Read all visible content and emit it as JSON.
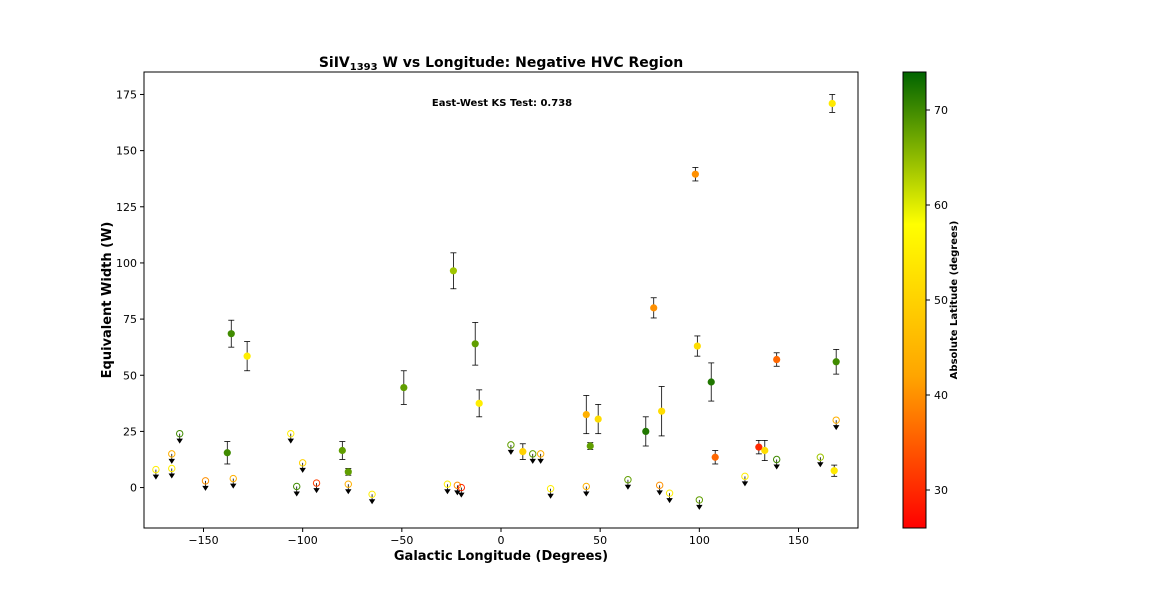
{
  "chart_data": {
    "type": "scatter",
    "title": {
      "main": "SiIV",
      "sub": "1393",
      "rest": " W vs Longitude: Negative HVC Region"
    },
    "xlabel": "Galactic Longitude (Degrees)",
    "ylabel": "Equivalent Width (W)",
    "annotation": "East-West KS Test: 0.738",
    "colorbar_label": "Absolute Latitude (degrees)",
    "xlim": [
      -180,
      180
    ],
    "ylim": [
      -18,
      185
    ],
    "xticks": [
      -150,
      -100,
      -50,
      0,
      50,
      100,
      150
    ],
    "yticks": [
      0,
      25,
      50,
      75,
      100,
      125,
      150,
      175
    ],
    "colorbar_range": [
      26,
      74
    ],
    "colorbar_ticks": [
      30,
      40,
      50,
      60,
      70
    ],
    "colormap": [
      "#ff0000",
      "#ffa500",
      "#ffff00",
      "#006400"
    ],
    "detections": [
      {
        "x": -138,
        "y": 15.5,
        "err": 5,
        "lat": 70
      },
      {
        "x": -136,
        "y": 68.5,
        "err": 6,
        "lat": 70
      },
      {
        "x": -128,
        "y": 58.5,
        "err": 6.5,
        "lat": 55
      },
      {
        "x": -80,
        "y": 16.5,
        "err": 4,
        "lat": 68
      },
      {
        "x": -77,
        "y": 7,
        "err": 1.5,
        "lat": 68
      },
      {
        "x": -49,
        "y": 44.5,
        "err": 7.5,
        "lat": 68
      },
      {
        "x": -24,
        "y": 96.5,
        "err": 8,
        "lat": 64
      },
      {
        "x": -13,
        "y": 64,
        "err": 9.5,
        "lat": 68
      },
      {
        "x": -11,
        "y": 37.5,
        "err": 6,
        "lat": 55
      },
      {
        "x": 11,
        "y": 16,
        "err": 3.5,
        "lat": 50
      },
      {
        "x": 43,
        "y": 32.5,
        "err": 8.5,
        "lat": 44
      },
      {
        "x": 45,
        "y": 18.5,
        "err": 1.5,
        "lat": 68
      },
      {
        "x": 49,
        "y": 30.5,
        "err": 6.5,
        "lat": 52
      },
      {
        "x": 73,
        "y": 25,
        "err": 6.5,
        "lat": 72
      },
      {
        "x": 77,
        "y": 80,
        "err": 4.5,
        "lat": 40
      },
      {
        "x": 81,
        "y": 34,
        "err": 11,
        "lat": 52
      },
      {
        "x": 98,
        "y": 139.5,
        "err": 3,
        "lat": 40
      },
      {
        "x": 99,
        "y": 63,
        "err": 4.5,
        "lat": 52
      },
      {
        "x": 106,
        "y": 47,
        "err": 8.5,
        "lat": 72
      },
      {
        "x": 108,
        "y": 13.5,
        "err": 3,
        "lat": 36
      },
      {
        "x": 130,
        "y": 18,
        "err": 3,
        "lat": 30
      },
      {
        "x": 133,
        "y": 16.5,
        "err": 4.5,
        "lat": 52
      },
      {
        "x": 139,
        "y": 57,
        "err": 3,
        "lat": 36
      },
      {
        "x": 167,
        "y": 171,
        "err": 4,
        "lat": 54
      },
      {
        "x": 168,
        "y": 7.5,
        "err": 2.5,
        "lat": 54
      },
      {
        "x": 169,
        "y": 56,
        "err": 5.5,
        "lat": 70
      }
    ],
    "upper_limits": [
      {
        "x": -174,
        "y": 8,
        "lat": 55
      },
      {
        "x": -166,
        "y": 15,
        "lat": 44
      },
      {
        "x": -166,
        "y": 8.5,
        "lat": 55
      },
      {
        "x": -162,
        "y": 24,
        "lat": 70
      },
      {
        "x": -149,
        "y": 3,
        "lat": 40
      },
      {
        "x": -135,
        "y": 4,
        "lat": 44
      },
      {
        "x": -106,
        "y": 24,
        "lat": 55
      },
      {
        "x": -103,
        "y": 0.5,
        "lat": 70
      },
      {
        "x": -100,
        "y": 11,
        "lat": 50
      },
      {
        "x": -93,
        "y": 2,
        "lat": 32
      },
      {
        "x": -77,
        "y": 1.5,
        "lat": 44
      },
      {
        "x": -65,
        "y": -3,
        "lat": 55
      },
      {
        "x": -27,
        "y": 1.5,
        "lat": 55
      },
      {
        "x": -22,
        "y": 1,
        "lat": 40
      },
      {
        "x": -20,
        "y": 0,
        "lat": 30
      },
      {
        "x": 5,
        "y": 19,
        "lat": 68
      },
      {
        "x": 16,
        "y": 15,
        "lat": 68
      },
      {
        "x": 20,
        "y": 15,
        "lat": 44
      },
      {
        "x": 25,
        "y": -0.5,
        "lat": 55
      },
      {
        "x": 43,
        "y": 0.5,
        "lat": 44
      },
      {
        "x": 64,
        "y": 3.5,
        "lat": 68
      },
      {
        "x": 80,
        "y": 1,
        "lat": 40
      },
      {
        "x": 85,
        "y": -2.5,
        "lat": 55
      },
      {
        "x": 100,
        "y": -5.5,
        "lat": 68
      },
      {
        "x": 123,
        "y": 5,
        "lat": 55
      },
      {
        "x": 139,
        "y": 12.5,
        "lat": 70
      },
      {
        "x": 161,
        "y": 13.5,
        "lat": 64
      },
      {
        "x": 169,
        "y": 30,
        "lat": 44
      }
    ]
  }
}
